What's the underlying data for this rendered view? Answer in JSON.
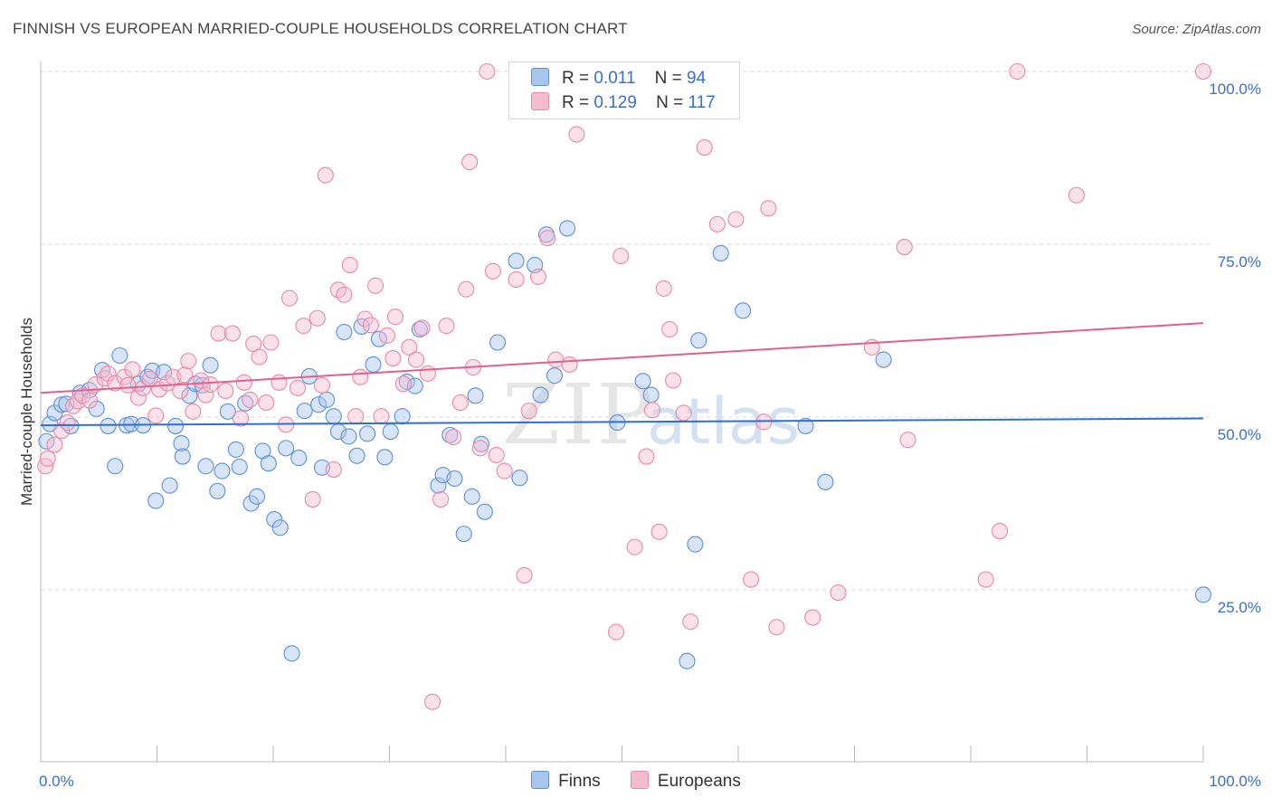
{
  "title": "FINNISH VS EUROPEAN MARRIED-COUPLE HOUSEHOLDS CORRELATION CHART",
  "source": "Source: ZipAtlas.com",
  "watermark": {
    "zip": "ZIP",
    "atlas": "atlas"
  },
  "legend": {
    "finns": {
      "r_label": "R =",
      "r_value": "0.011",
      "n_label": "N =",
      "n_value": "94"
    },
    "europeans": {
      "r_label": "R =",
      "r_value": "0.129",
      "n_label": "N =",
      "n_value": "117"
    }
  },
  "bottom_legend": {
    "finns": "Finns",
    "europeans": "Europeans"
  },
  "colors": {
    "finns_fill": "#a9c6ef",
    "finns_stroke": "#5f8fd6",
    "finns_line": "#2f6fd0",
    "eur_fill": "#f5bcd0",
    "eur_stroke": "#e78aa8",
    "eur_line": "#e0628d",
    "tick_label": "#3a6fcb",
    "grid": "#d9d9d9"
  },
  "chart_data": {
    "type": "scatter",
    "title": "FINNISH VS EUROPEAN MARRIED-COUPLE HOUSEHOLDS CORRELATION CHART",
    "xlabel": "",
    "ylabel": "Married-couple Households",
    "xlim": [
      0,
      100
    ],
    "ylim": [
      0,
      100
    ],
    "x_tick_labels": [
      "0.0%",
      "100.0%"
    ],
    "y_tick_labels": [
      "25.0%",
      "50.0%",
      "75.0%",
      "100.0%"
    ],
    "y_ticks": [
      25,
      50,
      75,
      100
    ],
    "grid": true,
    "legend_position": "top-center",
    "series": [
      {
        "name": "Finns",
        "r": 0.011,
        "n": 94,
        "trend": [
          [
            0,
            48.8
          ],
          [
            100,
            49.8
          ]
        ],
        "points": [
          [
            0.5,
            46.5
          ],
          [
            0.8,
            49
          ],
          [
            1.2,
            50.6
          ],
          [
            1.8,
            51.8
          ],
          [
            2.2,
            51.9
          ],
          [
            2.6,
            48.7
          ],
          [
            3.4,
            53.5
          ],
          [
            4.2,
            53.9
          ],
          [
            4.8,
            51.2
          ],
          [
            5.3,
            56.8
          ],
          [
            5.8,
            48.7
          ],
          [
            6.4,
            42.9
          ],
          [
            6.8,
            58.9
          ],
          [
            7.4,
            48.8
          ],
          [
            7.8,
            49
          ],
          [
            8.4,
            54.8
          ],
          [
            8.8,
            48.8
          ],
          [
            9.2,
            55.8
          ],
          [
            9.6,
            56.7
          ],
          [
            9.9,
            37.9
          ],
          [
            10.6,
            56.5
          ],
          [
            11.1,
            40.1
          ],
          [
            11.6,
            48.7
          ],
          [
            12.1,
            46.2
          ],
          [
            12.2,
            44.3
          ],
          [
            12.8,
            53.1
          ],
          [
            13.3,
            54.8
          ],
          [
            13.9,
            54.6
          ],
          [
            14.2,
            42.9
          ],
          [
            14.6,
            57.5
          ],
          [
            15.2,
            39.3
          ],
          [
            15.6,
            42.2
          ],
          [
            16.1,
            50.8
          ],
          [
            16.8,
            45.3
          ],
          [
            17.1,
            42.8
          ],
          [
            17.6,
            52
          ],
          [
            18.1,
            37.5
          ],
          [
            18.6,
            38.5
          ],
          [
            19.1,
            45.1
          ],
          [
            19.6,
            43.3
          ],
          [
            20.1,
            35.2
          ],
          [
            20.6,
            34
          ],
          [
            21.1,
            45.5
          ],
          [
            21.6,
            15.8
          ],
          [
            22.2,
            44.1
          ],
          [
            22.7,
            50.9
          ],
          [
            23.1,
            55.9
          ],
          [
            23.9,
            51.8
          ],
          [
            24.2,
            42.7
          ],
          [
            24.6,
            52.5
          ],
          [
            25.2,
            50.1
          ],
          [
            25.6,
            47.9
          ],
          [
            26.1,
            62.3
          ],
          [
            26.5,
            47.2
          ],
          [
            27.2,
            44.4
          ],
          [
            27.6,
            63.1
          ],
          [
            28.1,
            47.6
          ],
          [
            28.6,
            57.6
          ],
          [
            29.1,
            61.3
          ],
          [
            29.6,
            44.2
          ],
          [
            30.1,
            47.9
          ],
          [
            31.1,
            50.1
          ],
          [
            31.5,
            55.1
          ],
          [
            32.2,
            54.5
          ],
          [
            32.6,
            62.7
          ],
          [
            34.2,
            40.1
          ],
          [
            34.6,
            41.6
          ],
          [
            35.2,
            47.4
          ],
          [
            35.6,
            41.1
          ],
          [
            36.4,
            33.1
          ],
          [
            37.1,
            38.5
          ],
          [
            37.4,
            53.1
          ],
          [
            37.9,
            46.1
          ],
          [
            38.2,
            36.3
          ],
          [
            39.3,
            60.8
          ],
          [
            40.9,
            72.6
          ],
          [
            41.2,
            41.2
          ],
          [
            42.5,
            72
          ],
          [
            43,
            53.2
          ],
          [
            43.5,
            76.4
          ],
          [
            44.2,
            56
          ],
          [
            45.3,
            77.3
          ],
          [
            49.6,
            49.2
          ],
          [
            51.8,
            55.2
          ],
          [
            52.5,
            53.2
          ],
          [
            55.6,
            14.7
          ],
          [
            56.3,
            31.6
          ],
          [
            56.6,
            61.1
          ],
          [
            58.5,
            73.7
          ],
          [
            60.4,
            65.4
          ],
          [
            65.8,
            48.7
          ],
          [
            67.5,
            40.6
          ],
          [
            72.5,
            58.3
          ],
          [
            100,
            24.3
          ]
        ]
      },
      {
        "name": "Europeans",
        "r": 0.129,
        "n": 117,
        "trend": [
          [
            0,
            53.5
          ],
          [
            100,
            63.6
          ]
        ],
        "points": [
          [
            0.4,
            42.9
          ],
          [
            0.6,
            44
          ],
          [
            1.2,
            46
          ],
          [
            1.8,
            48
          ],
          [
            2.3,
            49.2
          ],
          [
            2.8,
            51.6
          ],
          [
            3.2,
            52.3
          ],
          [
            3.6,
            53.1
          ],
          [
            4.2,
            52.4
          ],
          [
            4.7,
            54.7
          ],
          [
            5.5,
            55.6
          ],
          [
            5.8,
            56.3
          ],
          [
            6.4,
            54.9
          ],
          [
            7.2,
            55.8
          ],
          [
            7.5,
            54.6
          ],
          [
            7.9,
            56.9
          ],
          [
            8.4,
            52.8
          ],
          [
            8.8,
            54.2
          ],
          [
            9.4,
            55.5
          ],
          [
            9.9,
            50.2
          ],
          [
            10.2,
            54
          ],
          [
            10.9,
            54.9
          ],
          [
            11.4,
            55.8
          ],
          [
            12,
            53.8
          ],
          [
            12.4,
            56.1
          ],
          [
            12.7,
            58.1
          ],
          [
            13.1,
            50.8
          ],
          [
            13.8,
            55.3
          ],
          [
            14.2,
            53.2
          ],
          [
            14.6,
            54.7
          ],
          [
            15.3,
            62.1
          ],
          [
            15.9,
            53.8
          ],
          [
            16.5,
            62.1
          ],
          [
            17.2,
            49.8
          ],
          [
            17.5,
            55
          ],
          [
            18,
            52.5
          ],
          [
            18.3,
            60.6
          ],
          [
            18.8,
            58.7
          ],
          [
            19.4,
            52.1
          ],
          [
            19.8,
            60.8
          ],
          [
            20.5,
            55
          ],
          [
            21.1,
            48.9
          ],
          [
            21.4,
            67.2
          ],
          [
            22.1,
            54.2
          ],
          [
            22.6,
            63.2
          ],
          [
            23.4,
            38.1
          ],
          [
            23.8,
            64.3
          ],
          [
            24.2,
            54.6
          ],
          [
            24.5,
            85
          ],
          [
            25.2,
            42.4
          ],
          [
            25.6,
            68.4
          ],
          [
            26.1,
            67.7
          ],
          [
            26.6,
            72
          ],
          [
            27.1,
            50.1
          ],
          [
            27.5,
            55.8
          ],
          [
            27.9,
            64.2
          ],
          [
            28.4,
            63.3
          ],
          [
            28.8,
            69
          ],
          [
            29.3,
            50.1
          ],
          [
            29.8,
            61.8
          ],
          [
            30.3,
            58.5
          ],
          [
            30.5,
            64.5
          ],
          [
            31.2,
            54.8
          ],
          [
            31.7,
            60.1
          ],
          [
            32.3,
            58.3
          ],
          [
            32.8,
            62.9
          ],
          [
            33.3,
            56.3
          ],
          [
            33.7,
            8.8
          ],
          [
            34.4,
            38.1
          ],
          [
            34.9,
            63.2
          ],
          [
            35.5,
            47.1
          ],
          [
            36.1,
            52.1
          ],
          [
            36.6,
            68.5
          ],
          [
            36.9,
            86.9
          ],
          [
            37.2,
            57.2
          ],
          [
            37.8,
            45.5
          ],
          [
            38.4,
            100
          ],
          [
            38.9,
            71.1
          ],
          [
            39.2,
            44.5
          ],
          [
            39.9,
            42.2
          ],
          [
            40.9,
            69.9
          ],
          [
            41.6,
            27.1
          ],
          [
            42,
            50.9
          ],
          [
            42.8,
            70.3
          ],
          [
            43.6,
            75.9
          ],
          [
            44.3,
            58.3
          ],
          [
            45.5,
            57.6
          ],
          [
            46.1,
            90.9
          ],
          [
            49.5,
            18.9
          ],
          [
            49.9,
            73.3
          ],
          [
            51.1,
            31.2
          ],
          [
            51.6,
            94.7
          ],
          [
            52.1,
            44.3
          ],
          [
            52.6,
            51
          ],
          [
            53.2,
            33.4
          ],
          [
            53.6,
            68.6
          ],
          [
            54.1,
            62.7
          ],
          [
            54.4,
            55.3
          ],
          [
            55.3,
            50.6
          ],
          [
            55.9,
            20.4
          ],
          [
            57.1,
            89
          ],
          [
            58.2,
            77.9
          ],
          [
            59.8,
            78.6
          ],
          [
            61.1,
            26.5
          ],
          [
            62.2,
            49.3
          ],
          [
            62.6,
            80.2
          ],
          [
            63.3,
            19.6
          ],
          [
            66.4,
            21
          ],
          [
            68.6,
            24.6
          ],
          [
            71.5,
            60.1
          ],
          [
            74.3,
            74.6
          ],
          [
            74.6,
            46.7
          ],
          [
            81.3,
            26.5
          ],
          [
            82.5,
            33.5
          ],
          [
            84,
            100
          ],
          [
            89.1,
            82.1
          ],
          [
            100,
            100
          ]
        ]
      }
    ]
  }
}
